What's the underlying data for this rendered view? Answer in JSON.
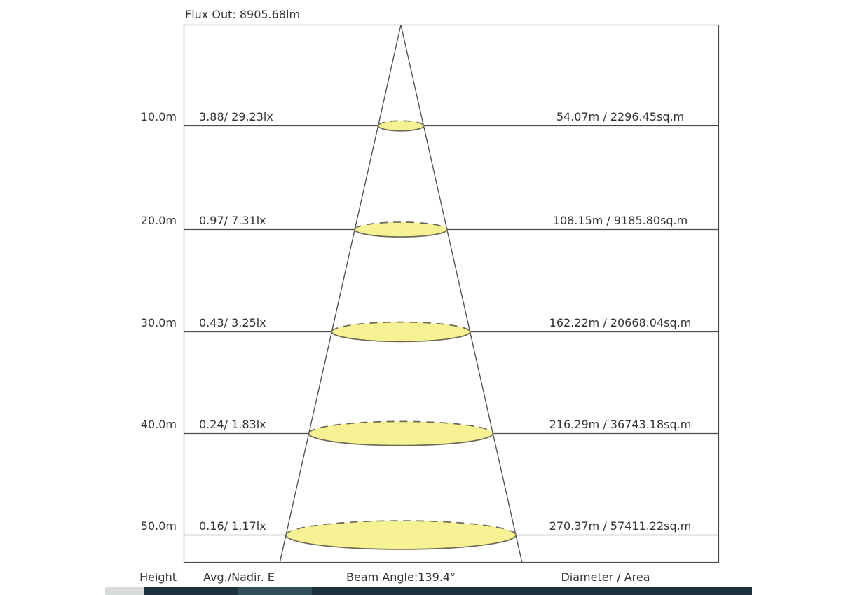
{
  "title": "Flux Out: 8905.68lm",
  "footer": {
    "height": "Height",
    "avg_nadir": "Avg./Nadir. E",
    "beam_angle": "Beam Angle:139.4°",
    "diameter_area": "Diameter / Area"
  },
  "rows": [
    {
      "height": "10.0m",
      "avg_nadir": "3.88/ 29.23lx",
      "diameter_area": "54.07m / 2296.45sq.m"
    },
    {
      "height": "20.0m",
      "avg_nadir": "0.97/ 7.31lx",
      "diameter_area": "108.15m / 9185.80sq.m"
    },
    {
      "height": "30.0m",
      "avg_nadir": "0.43/ 3.25lx",
      "diameter_area": "162.22m / 20668.04sq.m"
    },
    {
      "height": "40.0m",
      "avg_nadir": "0.24/ 1.83lx",
      "diameter_area": "216.29m / 36743.18sq.m"
    },
    {
      "height": "50.0m",
      "avg_nadir": "0.16/ 1.17lx",
      "diameter_area": "270.37m / 57411.22sq.m"
    }
  ],
  "chart_data": {
    "type": "table",
    "title": "Flux Out: 8905.68lm",
    "flux_out_lm": 8905.68,
    "beam_angle_deg": 139.4,
    "columns": [
      "Height (m)",
      "Avg E (lx)",
      "Nadir E (lx)",
      "Diameter (m)",
      "Area (sq.m)"
    ],
    "rows": [
      [
        10.0,
        3.88,
        29.23,
        54.07,
        2296.45
      ],
      [
        20.0,
        0.97,
        7.31,
        108.15,
        9185.8
      ],
      [
        30.0,
        0.43,
        3.25,
        162.22,
        20668.04
      ],
      [
        40.0,
        0.24,
        1.83,
        216.29,
        36743.18
      ],
      [
        50.0,
        0.16,
        1.17,
        270.37,
        57411.22
      ]
    ]
  },
  "colors": {
    "beam_fill": "#F6F293",
    "beam_stroke": "#6d6856",
    "line": "#4c4c4c",
    "text": "#333333",
    "bar_dark": "#1d323e",
    "bar_mid": "#32505a",
    "bar_light": "#d8dbdc"
  }
}
